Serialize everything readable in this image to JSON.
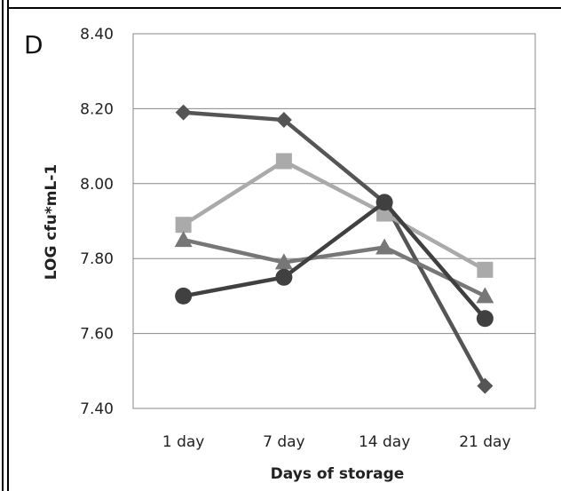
{
  "chart_data": {
    "type": "line",
    "panel_label": "D",
    "title": "",
    "xlabel": "Days of storage",
    "ylabel": "LOG cfu*mL-1",
    "categories": [
      "1 day",
      "7 day",
      "14 day",
      "21 day"
    ],
    "ylim": [
      7.4,
      8.4
    ],
    "yticks": [
      "7.40",
      "7.60",
      "7.80",
      "8.00",
      "8.20",
      "8.40"
    ],
    "grid": true,
    "legend": "none",
    "series": [
      {
        "marker": "diamond",
        "color": "#555555",
        "values": [
          8.19,
          8.17,
          7.95,
          7.46
        ]
      },
      {
        "marker": "square",
        "color": "#aaaaaa",
        "values": [
          7.89,
          8.06,
          7.92,
          7.77
        ]
      },
      {
        "marker": "triangle",
        "color": "#777777",
        "values": [
          7.85,
          7.79,
          7.83,
          7.7
        ]
      },
      {
        "marker": "circle",
        "color": "#404040",
        "values": [
          7.7,
          7.75,
          7.95,
          7.64
        ]
      }
    ]
  }
}
